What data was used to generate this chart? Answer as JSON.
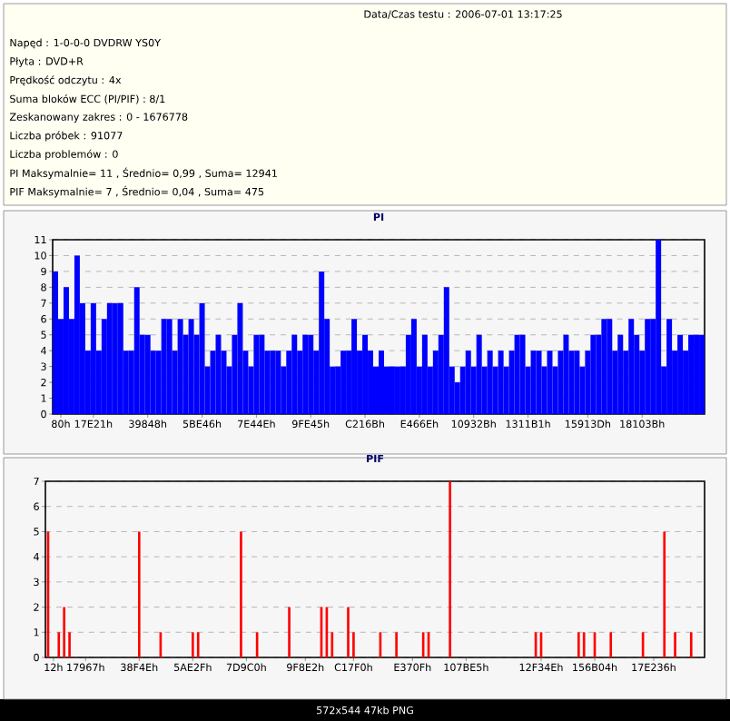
{
  "chart_data": [
    {
      "type": "other",
      "annotations": [
        "Data/Czas testu : 2006-07-01 13:17:25",
        "Napęd : 1-0-0-0 DVDRW  YS0Y",
        "Płyta : DVD+R",
        "Prędkość odczytu : 4x",
        "Suma bloków ECC (PI/PIF) : 8/1",
        "Zeskanowany zakres : 0 - 1676778",
        "Liczba próbek : 91077",
        "Liczba problemów : 0",
        "PI Maksymalnie= 11 , Średnio= 0,99 , Suma= 12941",
        "PIF Maksymalnie= 7 , Średnio= 0,04 , Suma= 475",
        "572x544 47kb PNG"
      ]
    },
    {
      "type": "bar",
      "title": "PI",
      "color": "#0000ff",
      "grid": "y",
      "ylim": [
        0,
        11
      ],
      "yticks": [
        0,
        1,
        2,
        3,
        4,
        5,
        6,
        7,
        8,
        9,
        10,
        11
      ],
      "categories": [
        null,
        "80h",
        null,
        null,
        null,
        null,
        null,
        "17E21h",
        null,
        null,
        null,
        null,
        null,
        null,
        null,
        null,
        null,
        "39848h",
        null,
        null,
        null,
        null,
        null,
        null,
        null,
        null,
        null,
        "5BE46h",
        null,
        null,
        null,
        null,
        null,
        null,
        null,
        null,
        null,
        "7E44Eh",
        null,
        null,
        null,
        null,
        null,
        null,
        null,
        null,
        null,
        "9FE45h",
        null,
        null,
        null,
        null,
        null,
        null,
        null,
        null,
        null,
        "C216Bh",
        null,
        null,
        null,
        null,
        null,
        null,
        null,
        null,
        null,
        "E466Eh",
        null,
        null,
        null,
        null,
        null,
        null,
        null,
        null,
        null,
        "10932Bh",
        null,
        null,
        null,
        null,
        null,
        null,
        null,
        null,
        null,
        "1311B1h",
        null,
        null,
        null,
        null,
        null,
        null,
        null,
        null,
        null,
        null,
        "15913Dh",
        null,
        null,
        null,
        null,
        null,
        null,
        null,
        null,
        null,
        "18103Bh",
        null,
        null,
        null,
        null,
        null,
        null,
        null,
        null,
        null,
        null,
        null
      ],
      "values": [
        9,
        6,
        8,
        6,
        10,
        7,
        4,
        7,
        4,
        6,
        7,
        7,
        7,
        4,
        4,
        8,
        5,
        5,
        4,
        4,
        6,
        6,
        4,
        6,
        5,
        6,
        5,
        7,
        3,
        4,
        5,
        4,
        3,
        5,
        7,
        4,
        3,
        5,
        5,
        4,
        4,
        4,
        3,
        4,
        5,
        4,
        5,
        5,
        4,
        9,
        6,
        3,
        3,
        4,
        4,
        6,
        4,
        5,
        4,
        3,
        4,
        3,
        3,
        3,
        3,
        5,
        6,
        3,
        5,
        3,
        4,
        5,
        8,
        3,
        2,
        3,
        4,
        3,
        5,
        3,
        4,
        3,
        4,
        3,
        4,
        5,
        5,
        3,
        4,
        4,
        3,
        4,
        3,
        4,
        5,
        4,
        4,
        3,
        4,
        5,
        5,
        6,
        6,
        4,
        5,
        4,
        6,
        5,
        4,
        6,
        6,
        11,
        3,
        6,
        4,
        5,
        4,
        5,
        5,
        5
      ]
    },
    {
      "type": "bar",
      "title": "PIF",
      "color": "#ff0000",
      "grid": "y",
      "ylim": [
        0,
        7
      ],
      "yticks": [
        0,
        1,
        2,
        3,
        4,
        5,
        6,
        7
      ],
      "categories": [
        null,
        "12h",
        null,
        null,
        null,
        null,
        null,
        "17967h",
        null,
        null,
        null,
        null,
        null,
        null,
        null,
        null,
        null,
        "38F4Eh",
        null,
        null,
        null,
        null,
        null,
        null,
        null,
        null,
        null,
        "5AE2Fh",
        null,
        null,
        null,
        null,
        null,
        null,
        null,
        null,
        null,
        "7D9C0h",
        null,
        null,
        null,
        null,
        null,
        null,
        null,
        null,
        null,
        null,
        "9F8E2h",
        null,
        null,
        null,
        null,
        null,
        null,
        null,
        null,
        "C17F0h",
        null,
        null,
        null,
        null,
        null,
        null,
        null,
        null,
        null,
        null,
        "E370Fh",
        null,
        null,
        null,
        null,
        null,
        null,
        null,
        null,
        null,
        "107BE5h",
        null,
        null,
        null,
        null,
        null,
        null,
        null,
        null,
        null,
        null,
        null,
        null,
        null,
        "12F34Eh",
        null,
        null,
        null,
        null,
        null,
        null,
        null,
        null,
        null,
        "156B04h",
        null,
        null,
        null,
        null,
        null,
        null,
        null,
        null,
        null,
        null,
        "17E236h",
        null,
        null,
        null,
        null,
        null,
        null,
        null,
        null,
        null
      ],
      "values": [
        5,
        0,
        1,
        2,
        1,
        0,
        0,
        0,
        0,
        0,
        0,
        0,
        0,
        0,
        0,
        0,
        0,
        5,
        0,
        0,
        0,
        1,
        0,
        0,
        0,
        0,
        0,
        1,
        1,
        0,
        0,
        0,
        0,
        0,
        0,
        0,
        5,
        0,
        0,
        1,
        0,
        0,
        0,
        0,
        0,
        2,
        0,
        0,
        0,
        0,
        0,
        2,
        2,
        1,
        0,
        0,
        2,
        1,
        0,
        0,
        0,
        0,
        1,
        0,
        0,
        1,
        0,
        0,
        0,
        0,
        1,
        1,
        0,
        0,
        0,
        7,
        0,
        0,
        0,
        0,
        0,
        0,
        0,
        0,
        0,
        0,
        0,
        0,
        0,
        0,
        0,
        1,
        1,
        0,
        0,
        0,
        0,
        0,
        0,
        1,
        1,
        0,
        1,
        0,
        0,
        1,
        0,
        0,
        0,
        0,
        0,
        1,
        0,
        0,
        0,
        5,
        0,
        1,
        0,
        0,
        1,
        0,
        0
      ]
    }
  ]
}
